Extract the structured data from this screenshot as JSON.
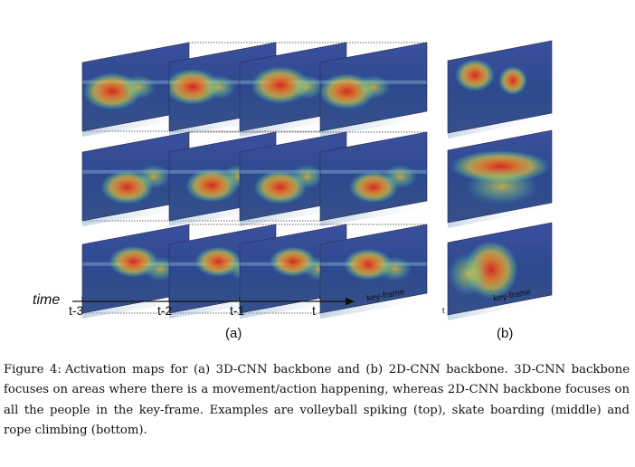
{
  "figure": {
    "time_label": "time",
    "time_ticks": [
      "t-3",
      "t-2",
      "t-1",
      "t"
    ],
    "keyframe_label_a": "key-frame",
    "keyframe_label_b": "key-frame",
    "panel_b_time": "t",
    "panel_a_label": "(a)",
    "panel_b_label": "(b)",
    "rows": [
      "volleyball spiking",
      "skate boarding",
      "rope climbing"
    ]
  },
  "caption": {
    "label": "Figure 4:",
    "text": "Activation maps for (a) 3D-CNN backbone and (b) 2D-CNN backbone. 3D-CNN backbone focuses on areas where there is a movement/action happening, whereas 2D-CNN backbone focuses on all the people in the key-frame. Examples are volleyball spiking (top), skate boarding (middle) and rope climbing (bottom)."
  },
  "colors": {
    "map_base": "#2e3a8c",
    "map_hot": "#d9281e",
    "map_warm": "#f2d23a",
    "shade": "#8fb0d6"
  }
}
